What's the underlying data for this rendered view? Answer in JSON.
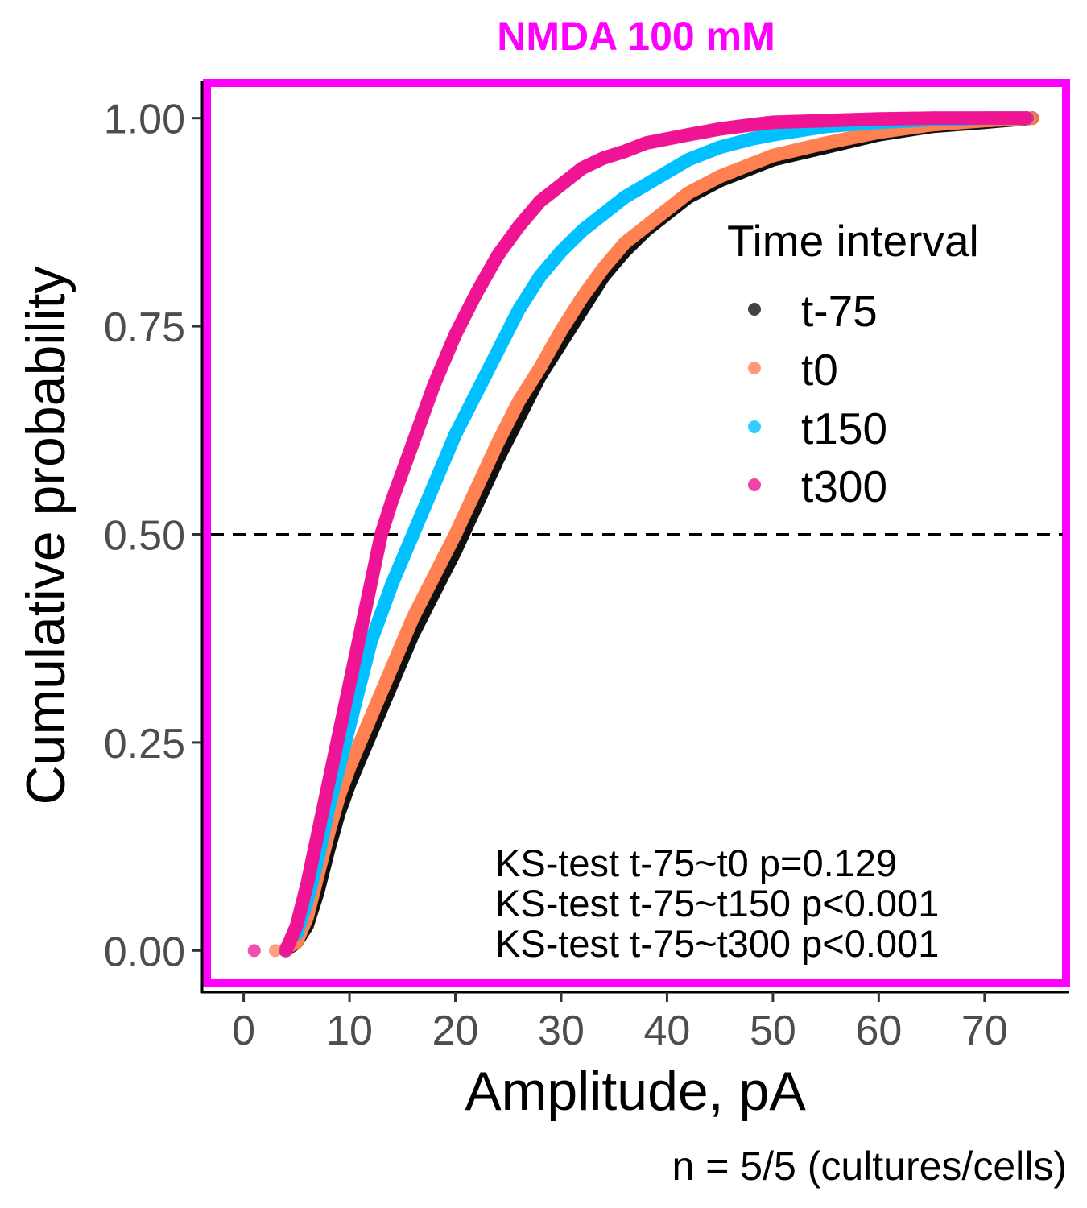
{
  "chart_data": {
    "type": "scatter",
    "title": "NMDA 100 mM",
    "title_color": "#ff00ff",
    "frame_color": "#ff00ff",
    "xlabel": "Amplitude, pA",
    "ylabel": "Cumulative probability",
    "caption": "n = 5/5 (cultures/cells)",
    "xlim": [
      -4,
      78
    ],
    "ylim": [
      -0.05,
      1.05
    ],
    "xticks": [
      0,
      10,
      20,
      30,
      40,
      50,
      60,
      70
    ],
    "xtick_labels": [
      "0",
      "10",
      "20",
      "30",
      "40",
      "50",
      "60",
      "70"
    ],
    "yticks": [
      0,
      0.25,
      0.5,
      0.75,
      1
    ],
    "ytick_labels": [
      "0.00",
      "0.25",
      "0.50",
      "0.75",
      "1.00"
    ],
    "reference_line": {
      "y": 0.5,
      "style": "dashed",
      "color": "#000000"
    },
    "grid": false,
    "legend": {
      "title": "Time interval",
      "position": "top-right",
      "entries": [
        "t-75",
        "t0",
        "t150",
        "t300"
      ]
    },
    "annotations": [
      "KS-test t-75~t0 p=0.129",
      "KS-test t-75~t150 p<0.001",
      "KS-test t-75~t300 p<0.001"
    ],
    "series": [
      {
        "name": "t-75",
        "color": "#111111",
        "points": [
          [
            3.9,
            0
          ],
          [
            4.5,
            0.005
          ],
          [
            5,
            0.01
          ],
          [
            6,
            0.03
          ],
          [
            7,
            0.07
          ],
          [
            8,
            0.12
          ],
          [
            9,
            0.165
          ],
          [
            10,
            0.2
          ],
          [
            12,
            0.26
          ],
          [
            14,
            0.32
          ],
          [
            16,
            0.38
          ],
          [
            18,
            0.43
          ],
          [
            20,
            0.48
          ],
          [
            22,
            0.535
          ],
          [
            24,
            0.59
          ],
          [
            26,
            0.64
          ],
          [
            28,
            0.69
          ],
          [
            30,
            0.73
          ],
          [
            32,
            0.77
          ],
          [
            34,
            0.81
          ],
          [
            36,
            0.84
          ],
          [
            38,
            0.865
          ],
          [
            40,
            0.885
          ],
          [
            42,
            0.905
          ],
          [
            45,
            0.925
          ],
          [
            48,
            0.94
          ],
          [
            50,
            0.95
          ],
          [
            55,
            0.965
          ],
          [
            60,
            0.98
          ],
          [
            65,
            0.99
          ],
          [
            70,
            0.995
          ],
          [
            74.5,
            1
          ]
        ]
      },
      {
        "name": "t0",
        "color": "#ff8050",
        "points": [
          [
            3,
            0
          ],
          [
            4,
            0.003
          ],
          [
            5,
            0.01
          ],
          [
            6,
            0.04
          ],
          [
            7,
            0.09
          ],
          [
            8,
            0.14
          ],
          [
            9,
            0.185
          ],
          [
            10,
            0.22
          ],
          [
            12,
            0.28
          ],
          [
            14,
            0.34
          ],
          [
            16,
            0.4
          ],
          [
            18,
            0.45
          ],
          [
            20,
            0.5
          ],
          [
            22,
            0.555
          ],
          [
            24,
            0.61
          ],
          [
            26,
            0.66
          ],
          [
            28,
            0.7
          ],
          [
            30,
            0.745
          ],
          [
            32,
            0.785
          ],
          [
            34,
            0.82
          ],
          [
            36,
            0.85
          ],
          [
            38,
            0.87
          ],
          [
            40,
            0.89
          ],
          [
            42,
            0.91
          ],
          [
            45,
            0.93
          ],
          [
            48,
            0.945
          ],
          [
            50,
            0.955
          ],
          [
            55,
            0.97
          ],
          [
            60,
            0.983
          ],
          [
            65,
            0.992
          ],
          [
            70,
            0.997
          ],
          [
            74.5,
            1
          ]
        ]
      },
      {
        "name": "t150",
        "color": "#00bfff",
        "points": [
          [
            4,
            0
          ],
          [
            5,
            0.02
          ],
          [
            6,
            0.06
          ],
          [
            7,
            0.11
          ],
          [
            8,
            0.17
          ],
          [
            9,
            0.22
          ],
          [
            10,
            0.27
          ],
          [
            11,
            0.32
          ],
          [
            12,
            0.37
          ],
          [
            14,
            0.44
          ],
          [
            16,
            0.5
          ],
          [
            18,
            0.56
          ],
          [
            20,
            0.62
          ],
          [
            22,
            0.67
          ],
          [
            24,
            0.72
          ],
          [
            26,
            0.77
          ],
          [
            28,
            0.81
          ],
          [
            30,
            0.84
          ],
          [
            32,
            0.865
          ],
          [
            34,
            0.885
          ],
          [
            36,
            0.905
          ],
          [
            38,
            0.92
          ],
          [
            40,
            0.935
          ],
          [
            42,
            0.95
          ],
          [
            45,
            0.965
          ],
          [
            48,
            0.975
          ],
          [
            50,
            0.98
          ],
          [
            55,
            0.99
          ],
          [
            60,
            0.995
          ],
          [
            65,
            0.998
          ],
          [
            70,
            1
          ],
          [
            74,
            1
          ]
        ]
      },
      {
        "name": "t300",
        "color": "#ee1493",
        "points": [
          [
            1,
            0
          ],
          [
            4,
            0
          ],
          [
            5,
            0.03
          ],
          [
            6,
            0.08
          ],
          [
            7,
            0.14
          ],
          [
            8,
            0.2
          ],
          [
            9,
            0.26
          ],
          [
            10,
            0.32
          ],
          [
            11,
            0.38
          ],
          [
            12,
            0.44
          ],
          [
            13,
            0.5
          ],
          [
            14,
            0.54
          ],
          [
            16,
            0.61
          ],
          [
            18,
            0.68
          ],
          [
            20,
            0.74
          ],
          [
            22,
            0.79
          ],
          [
            24,
            0.835
          ],
          [
            26,
            0.87
          ],
          [
            28,
            0.9
          ],
          [
            30,
            0.92
          ],
          [
            32,
            0.94
          ],
          [
            34,
            0.952
          ],
          [
            36,
            0.96
          ],
          [
            38,
            0.97
          ],
          [
            40,
            0.975
          ],
          [
            42,
            0.98
          ],
          [
            45,
            0.987
          ],
          [
            48,
            0.992
          ],
          [
            50,
            0.995
          ],
          [
            55,
            0.997
          ],
          [
            60,
            0.999
          ],
          [
            65,
            1
          ],
          [
            70,
            1
          ],
          [
            74,
            1
          ]
        ]
      }
    ]
  }
}
